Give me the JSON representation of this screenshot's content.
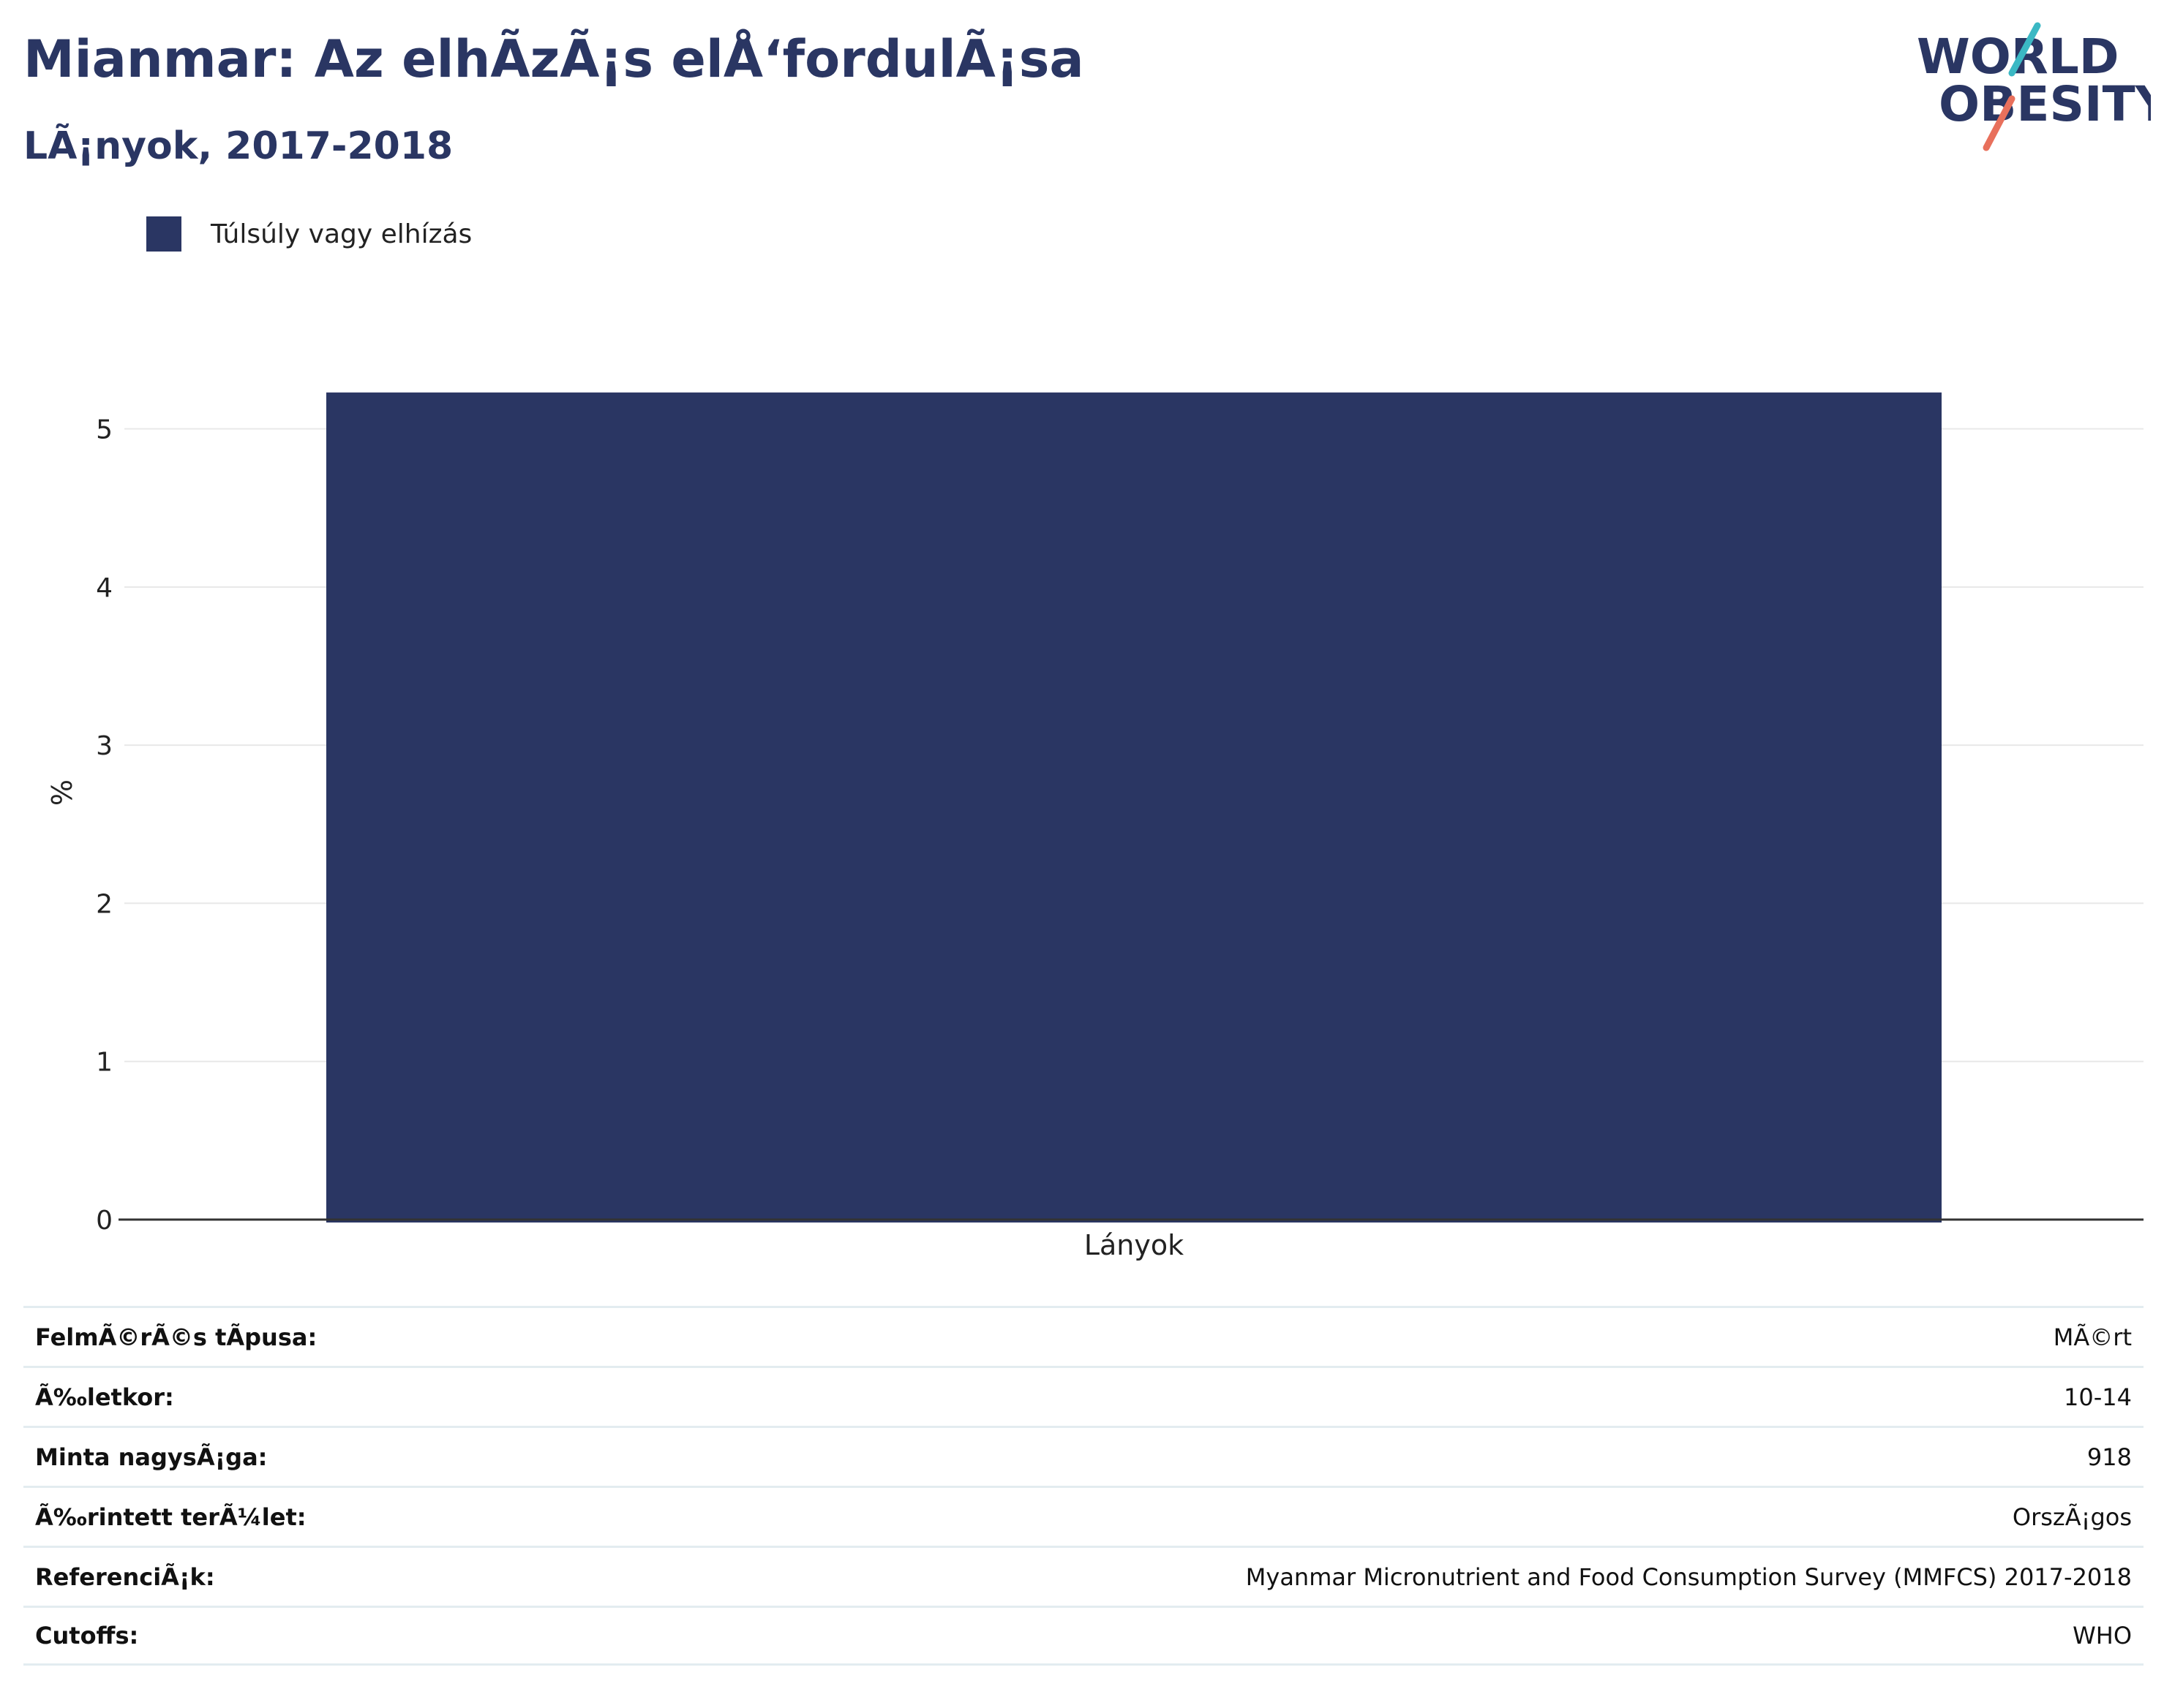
{
  "header": {
    "title": "Mianmar: Az elhÃzÃ¡s elÅ‘fordulÃ¡sa",
    "subtitle": "LÃ¡nyok, 2017-2018"
  },
  "logo": {
    "line1": "WORLD",
    "line2": "OBESITY",
    "accent_teal": "#3bb8c4",
    "accent_coral": "#e8705c"
  },
  "colors": {
    "bar": "#2a3663",
    "text": "#2a3663",
    "grid": "#e8e8e8",
    "axis": "#333333"
  },
  "chart_data": {
    "type": "bar",
    "categories": [
      "Lányok"
    ],
    "series": [
      {
        "name": "Túlsúly vagy elhízás",
        "values": [
          5.23
        ]
      }
    ],
    "ylabel": "%",
    "xlabel": "",
    "ylim": [
      0,
      5.4
    ],
    "yticks": [
      0,
      1,
      2,
      3,
      4,
      5
    ],
    "grid": true,
    "legend_position": "top-left"
  },
  "info_table": [
    {
      "label": "FelmÃ©rÃ©s tÃpusa:",
      "value": "MÃ©rt"
    },
    {
      "label": "Ã‰letkor:",
      "value": "10-14"
    },
    {
      "label": "Minta nagysÃ¡ga:",
      "value": "918"
    },
    {
      "label": "Ã‰rintett terÃ¼let:",
      "value": "OrszÃ¡gos"
    },
    {
      "label": "ReferenciÃ¡k:",
      "value": "Myanmar Micronutrient and Food Consumption Survey (MMFCS) 2017-2018"
    },
    {
      "label": "Cutoffs:",
      "value": "WHO"
    }
  ]
}
